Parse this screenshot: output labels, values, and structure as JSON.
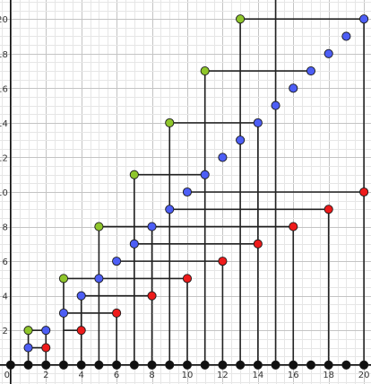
{
  "colors": {
    "background": "#ffffff",
    "grid_minor": "#e6e6e6",
    "grid_major": "#c4c4c4",
    "axis": "#000000",
    "edge": "#222222",
    "black_point": "#111111",
    "blue_point": "#4d5ef5",
    "red_point": "#ee1b1b",
    "green_point": "#8fc62b",
    "point_stroke": "#1a1a1a"
  },
  "axes": {
    "x_range": [
      -0.6,
      20.4
    ],
    "y_range": [
      -1.1,
      21.1
    ],
    "x_ticks": [
      "0",
      "2",
      "4",
      "6",
      "8",
      "10",
      "12",
      "14",
      "16",
      "18",
      "20"
    ],
    "y_ticks": [
      "2",
      "4",
      "6",
      "8",
      "10",
      "12",
      "14",
      "16",
      "18",
      "20"
    ],
    "minor_step": 0.5,
    "major_step": 2
  },
  "chart_data": {
    "type": "scatter",
    "points": {
      "black": [
        [
          0,
          0
        ],
        [
          1,
          0
        ],
        [
          2,
          0
        ],
        [
          3,
          0
        ],
        [
          4,
          0
        ],
        [
          5,
          0
        ],
        [
          6,
          0
        ],
        [
          7,
          0
        ],
        [
          8,
          0
        ],
        [
          9,
          0
        ],
        [
          10,
          0
        ],
        [
          11,
          0
        ],
        [
          12,
          0
        ],
        [
          13,
          0
        ],
        [
          14,
          0
        ],
        [
          15,
          0
        ],
        [
          16,
          0
        ],
        [
          17,
          0
        ],
        [
          18,
          0
        ],
        [
          19,
          0
        ],
        [
          20,
          0
        ]
      ],
      "blue": [
        [
          1,
          1
        ],
        [
          2,
          2
        ],
        [
          3,
          3
        ],
        [
          4,
          4
        ],
        [
          5,
          5
        ],
        [
          6,
          6
        ],
        [
          7,
          7
        ],
        [
          8,
          8
        ],
        [
          9,
          9
        ],
        [
          10,
          10
        ],
        [
          11,
          11
        ],
        [
          12,
          12
        ],
        [
          13,
          13
        ],
        [
          14,
          14
        ],
        [
          15,
          15
        ],
        [
          16,
          16
        ],
        [
          17,
          17
        ],
        [
          18,
          18
        ],
        [
          19,
          19
        ],
        [
          20,
          20
        ]
      ],
      "red": [
        [
          2,
          1
        ],
        [
          4,
          2
        ],
        [
          6,
          3
        ],
        [
          8,
          4
        ],
        [
          10,
          5
        ],
        [
          12,
          6
        ],
        [
          14,
          7
        ],
        [
          16,
          8
        ],
        [
          18,
          9
        ],
        [
          20,
          10
        ]
      ],
      "green": [
        [
          1,
          2
        ],
        [
          3,
          5
        ],
        [
          5,
          8
        ],
        [
          7,
          11
        ],
        [
          9,
          14
        ],
        [
          11,
          17
        ],
        [
          13,
          20
        ]
      ]
    },
    "lines": [
      {
        "points": [
          [
            1,
            0
          ],
          [
            1,
            2
          ]
        ]
      },
      {
        "points": [
          [
            2,
            0
          ],
          [
            2,
            2
          ]
        ]
      },
      {
        "points": [
          [
            3,
            0
          ],
          [
            3,
            5
          ]
        ]
      },
      {
        "points": [
          [
            4,
            0
          ],
          [
            4,
            4
          ]
        ]
      },
      {
        "points": [
          [
            5,
            0
          ],
          [
            5,
            8
          ]
        ]
      },
      {
        "points": [
          [
            6,
            0
          ],
          [
            6,
            3
          ]
        ]
      },
      {
        "points": [
          [
            7,
            0
          ],
          [
            7,
            11
          ]
        ]
      },
      {
        "points": [
          [
            8,
            0
          ],
          [
            8,
            8
          ]
        ]
      },
      {
        "points": [
          [
            9,
            0
          ],
          [
            9,
            14
          ]
        ]
      },
      {
        "points": [
          [
            10,
            0
          ],
          [
            10,
            5
          ]
        ]
      },
      {
        "points": [
          [
            11,
            0
          ],
          [
            11,
            17
          ]
        ]
      },
      {
        "points": [
          [
            12,
            0
          ],
          [
            12,
            6
          ]
        ]
      },
      {
        "points": [
          [
            13,
            0
          ],
          [
            13,
            20
          ]
        ]
      },
      {
        "points": [
          [
            14,
            0
          ],
          [
            14,
            14
          ]
        ]
      },
      {
        "points": [
          [
            15,
            0
          ],
          [
            15,
            21.1
          ]
        ]
      },
      {
        "points": [
          [
            16,
            0
          ],
          [
            16,
            8
          ]
        ]
      },
      {
        "points": [
          [
            18,
            0
          ],
          [
            18,
            9
          ]
        ]
      },
      {
        "points": [
          [
            20,
            0
          ],
          [
            20,
            20
          ]
        ]
      },
      {
        "points": [
          [
            1,
            2
          ],
          [
            2,
            2
          ]
        ]
      },
      {
        "points": [
          [
            1,
            1
          ],
          [
            2,
            1
          ]
        ]
      },
      {
        "points": [
          [
            3,
            5
          ],
          [
            5,
            5
          ]
        ]
      },
      {
        "points": [
          [
            3,
            3
          ],
          [
            6,
            3
          ]
        ]
      },
      {
        "points": [
          [
            4,
            2
          ],
          [
            3,
            2
          ]
        ]
      },
      {
        "points": [
          [
            4,
            4
          ],
          [
            8,
            4
          ]
        ]
      },
      {
        "points": [
          [
            5,
            8
          ],
          [
            8,
            8
          ]
        ]
      },
      {
        "points": [
          [
            5,
            5
          ],
          [
            10,
            5
          ]
        ]
      },
      {
        "points": [
          [
            6,
            6
          ],
          [
            12,
            6
          ]
        ]
      },
      {
        "points": [
          [
            7,
            11
          ],
          [
            11,
            11
          ]
        ]
      },
      {
        "points": [
          [
            7,
            7
          ],
          [
            14,
            7
          ]
        ]
      },
      {
        "points": [
          [
            8,
            8
          ],
          [
            16,
            8
          ]
        ]
      },
      {
        "points": [
          [
            9,
            14
          ],
          [
            14,
            14
          ]
        ]
      },
      {
        "points": [
          [
            9,
            9
          ],
          [
            18,
            9
          ]
        ]
      },
      {
        "points": [
          [
            10,
            10
          ],
          [
            20,
            10
          ]
        ]
      },
      {
        "points": [
          [
            11,
            17
          ],
          [
            17,
            17
          ]
        ]
      },
      {
        "points": [
          [
            13,
            20
          ],
          [
            20,
            20
          ]
        ]
      }
    ]
  }
}
